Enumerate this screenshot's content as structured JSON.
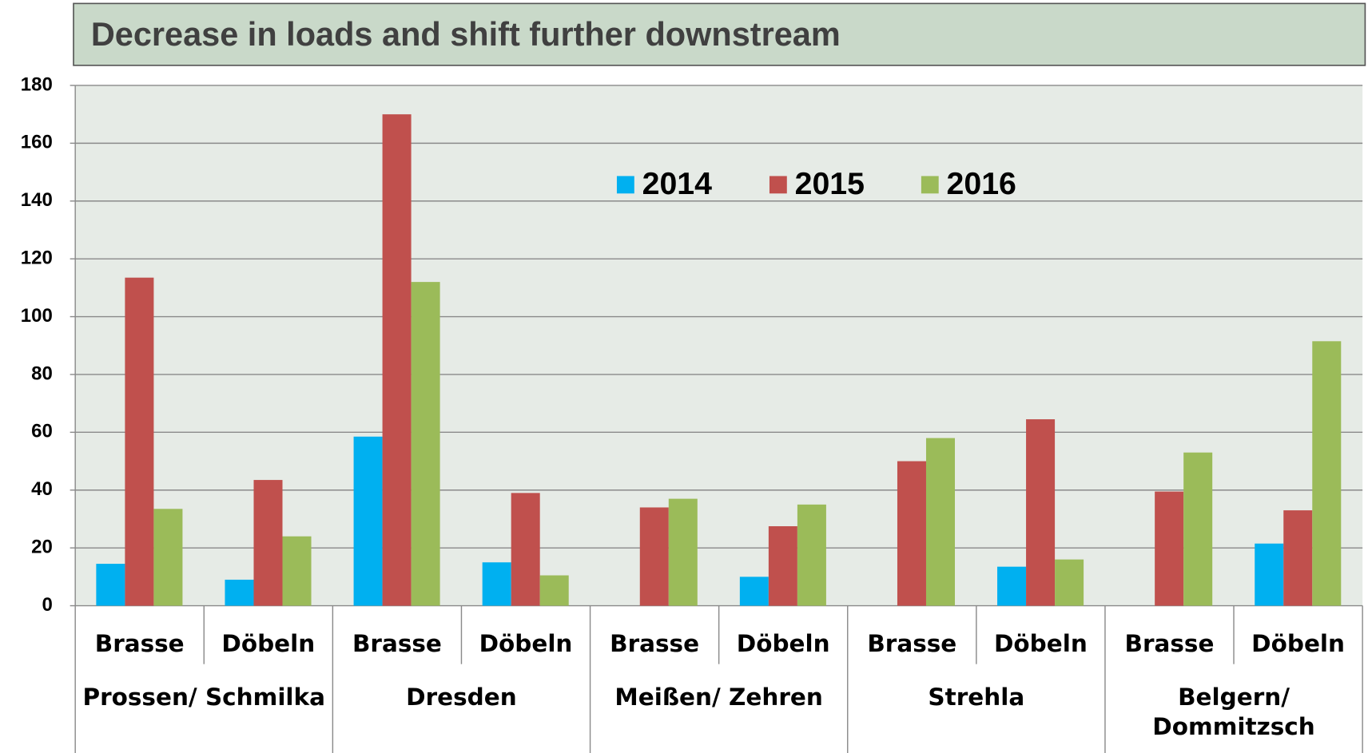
{
  "chart_data": {
    "type": "bar",
    "title": "Decrease in loads and shift further downstream",
    "categories": [
      "Brasse",
      "Döbeln",
      "Brasse",
      "Döbeln",
      "Brasse",
      "Döbeln",
      "Brasse",
      "Döbeln",
      "Brasse",
      "Döbeln"
    ],
    "groups": [
      "Prossen/ Schmilka",
      "Dresden",
      "Meißen/ Zehren",
      "Strehla",
      "Belgern/ Dommitzsch"
    ],
    "series": [
      {
        "name": "2014",
        "color": "#00b0f0",
        "values": [
          14.5,
          9,
          58.5,
          15,
          null,
          10,
          null,
          13.5,
          null,
          21.5
        ]
      },
      {
        "name": "2015",
        "color": "#c0504d",
        "values": [
          113.5,
          43.5,
          170,
          39,
          34,
          27.5,
          50,
          64.5,
          39.5,
          33
        ]
      },
      {
        "name": "2016",
        "color": "#9bbb59",
        "values": [
          33.5,
          24,
          112,
          10.5,
          37,
          35,
          58,
          16,
          53,
          91.5
        ]
      }
    ],
    "ylim": [
      0,
      180
    ],
    "yticks": [
      0,
      20,
      40,
      60,
      80,
      100,
      120,
      140,
      160,
      180
    ],
    "grid": true
  }
}
